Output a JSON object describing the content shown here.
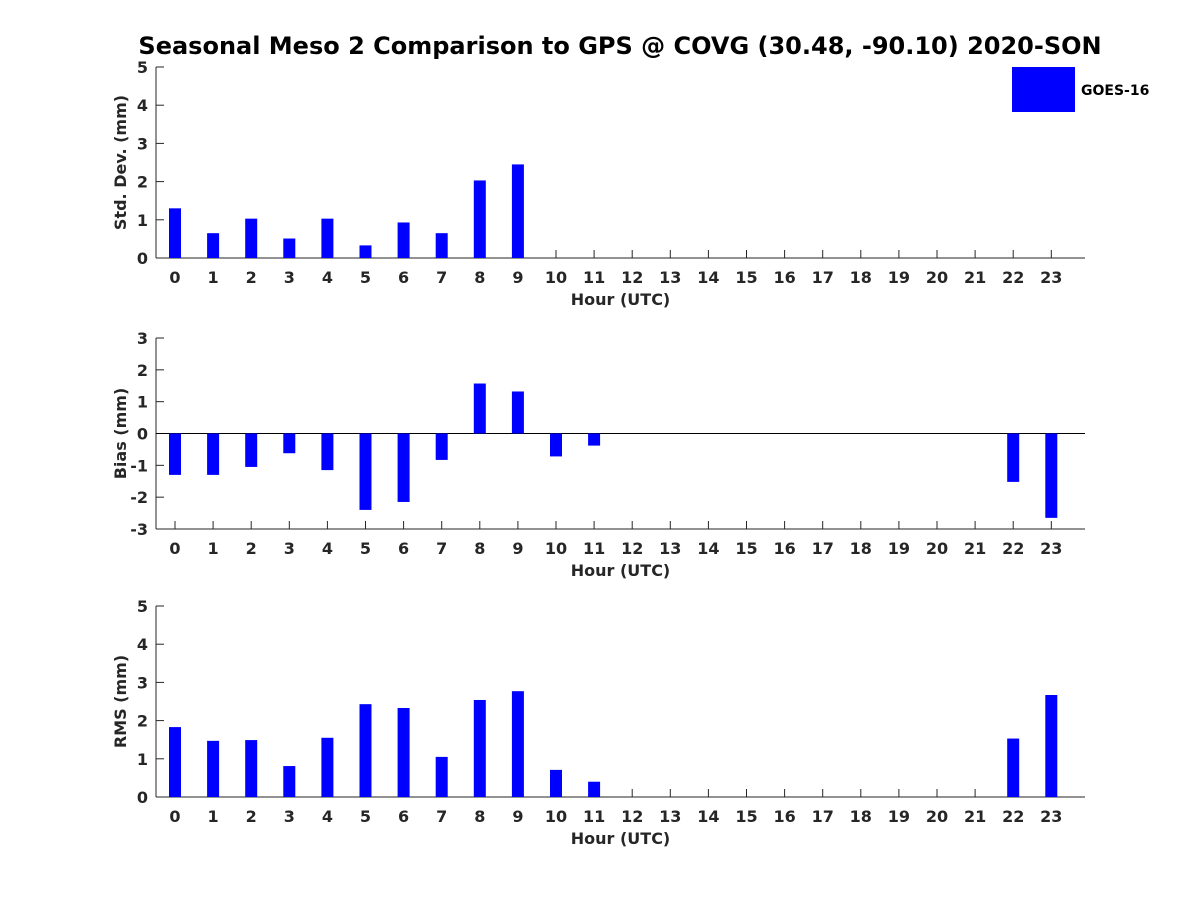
{
  "figure": {
    "title": "Seasonal Meso 2 Comparison to GPS @ COVG (30.48, -90.10) 2020-SON"
  },
  "legend": {
    "label": "GOES-16",
    "color": "#0000ff",
    "placement": "top-right"
  },
  "chart_data": [
    {
      "type": "bar",
      "xlabel": "Hour (UTC)",
      "ylabel": "Std. Dev. (mm)",
      "categories": [
        "0",
        "1",
        "2",
        "3",
        "4",
        "5",
        "6",
        "7",
        "8",
        "9",
        "10",
        "11",
        "12",
        "13",
        "14",
        "15",
        "16",
        "17",
        "18",
        "19",
        "20",
        "21",
        "22",
        "23"
      ],
      "values": [
        1.3,
        0.65,
        1.03,
        0.51,
        1.03,
        0.33,
        0.93,
        0.65,
        2.03,
        2.45,
        null,
        null,
        null,
        null,
        null,
        null,
        null,
        null,
        null,
        null,
        null,
        null,
        null,
        null
      ],
      "ylim": [
        0,
        5
      ],
      "yticks": [
        0,
        1,
        2,
        3,
        4,
        5
      ],
      "color": "#0000ff"
    },
    {
      "type": "bar",
      "xlabel": "Hour (UTC)",
      "ylabel": "Bias (mm)",
      "categories": [
        "0",
        "1",
        "2",
        "3",
        "4",
        "5",
        "6",
        "7",
        "8",
        "9",
        "10",
        "11",
        "12",
        "13",
        "14",
        "15",
        "16",
        "17",
        "18",
        "19",
        "20",
        "21",
        "22",
        "23"
      ],
      "values": [
        -1.3,
        -1.3,
        -1.05,
        -0.62,
        -1.15,
        -2.4,
        -2.15,
        -0.83,
        1.57,
        1.32,
        -0.72,
        -0.38,
        null,
        null,
        null,
        null,
        null,
        null,
        null,
        null,
        null,
        null,
        -1.52,
        -2.65
      ],
      "ylim": [
        -3,
        3
      ],
      "yticks": [
        -3,
        -2,
        -1,
        0,
        1,
        2,
        3
      ],
      "color": "#0000ff"
    },
    {
      "type": "bar",
      "xlabel": "Hour (UTC)",
      "ylabel": "RMS (mm)",
      "categories": [
        "0",
        "1",
        "2",
        "3",
        "4",
        "5",
        "6",
        "7",
        "8",
        "9",
        "10",
        "11",
        "12",
        "13",
        "14",
        "15",
        "16",
        "17",
        "18",
        "19",
        "20",
        "21",
        "22",
        "23"
      ],
      "values": [
        1.83,
        1.47,
        1.49,
        0.81,
        1.55,
        2.43,
        2.33,
        1.05,
        2.54,
        2.77,
        0.71,
        0.4,
        null,
        null,
        null,
        null,
        null,
        null,
        null,
        null,
        null,
        null,
        1.53,
        2.67
      ],
      "ylim": [
        0,
        5
      ],
      "yticks": [
        0,
        1,
        2,
        3,
        4,
        5
      ],
      "color": "#0000ff"
    }
  ]
}
